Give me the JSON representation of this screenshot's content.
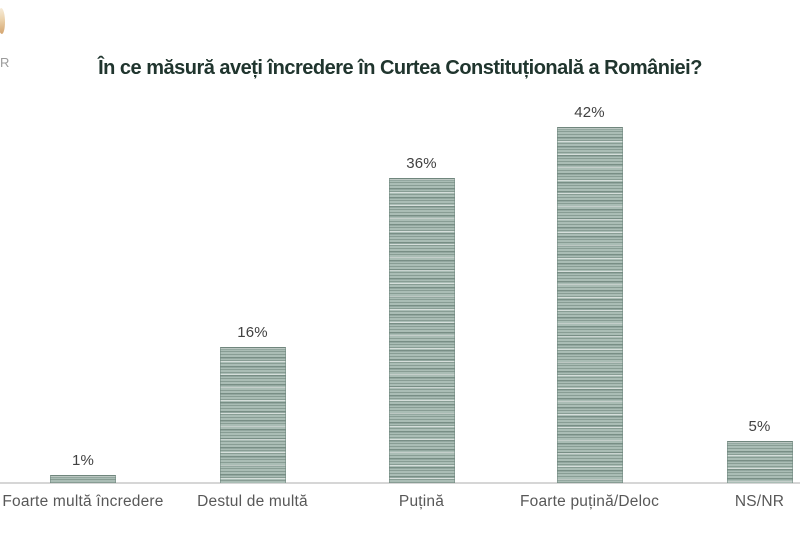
{
  "logo_fragment": {
    "letter": "R"
  },
  "chart_data": {
    "type": "bar",
    "title": "În ce măsură aveți încredere în Curtea Constituțională a României?",
    "categories": [
      "Foarte multă încredere",
      "Destul de multă",
      "Puțină",
      "Foarte puțină/Deloc",
      "NS/NR"
    ],
    "values": [
      1,
      16,
      36,
      42,
      5
    ],
    "value_labels": [
      "1%",
      "16%",
      "36%",
      "42%",
      "5%"
    ],
    "unit": "%",
    "xlabel": "",
    "ylabel": "",
    "ylim": [
      0,
      45
    ],
    "grid": false,
    "legend": false,
    "colors": {
      "background": "#ffffff",
      "bar_base": "#aabdb5",
      "bar_stripe": "#7f968d",
      "title": "#20352e",
      "value_label": "#414141",
      "category_label": "#585858",
      "axis_line": "#d6d6d6"
    }
  }
}
